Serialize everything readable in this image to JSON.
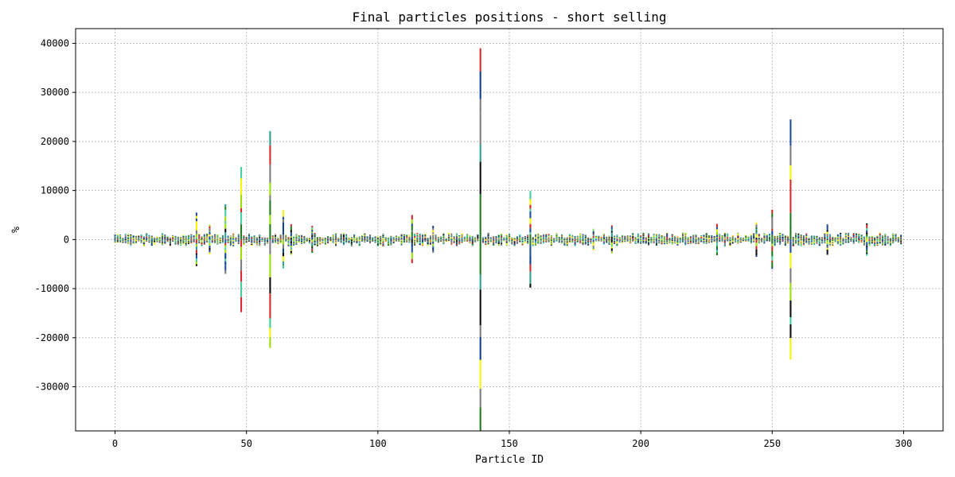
{
  "chart_data": {
    "type": "bar",
    "title": "Final particles positions - short selling",
    "xlabel": "Particle ID",
    "ylabel": "%",
    "xlim": [
      -15,
      315
    ],
    "ylim": [
      -39000,
      43000
    ],
    "x_ticks": [
      0,
      50,
      100,
      150,
      200,
      250,
      300
    ],
    "y_ticks": [
      -30000,
      -20000,
      -10000,
      0,
      10000,
      20000,
      30000,
      40000
    ],
    "grid": true,
    "legend": "none",
    "stacked": true,
    "segment_colors": [
      "#d62728",
      "#1f4e9c",
      "#2a9d8f",
      "#3ecf9a",
      "#f5f500",
      "#0a0a0a",
      "#1a7a1a",
      "#7a7a7a",
      "#0b3d91",
      "#9ade00"
    ],
    "num_particles": 300,
    "baseline_range": [
      -1400,
      1400
    ],
    "particles": [
      {
        "id": 31,
        "up": 5500,
        "down": -5400
      },
      {
        "id": 36,
        "up": 3000,
        "down": -3000
      },
      {
        "id": 42,
        "up": 7200,
        "down": -7000
      },
      {
        "id": 48,
        "up": 14800,
        "down": -14800
      },
      {
        "id": 59,
        "up": 22100,
        "down": -22100
      },
      {
        "id": 64,
        "up": 6000,
        "down": -5900
      },
      {
        "id": 67,
        "up": 3100,
        "down": -3100
      },
      {
        "id": 75,
        "up": 2800,
        "down": -2700
      },
      {
        "id": 113,
        "up": 5000,
        "down": -4800
      },
      {
        "id": 121,
        "up": 2800,
        "down": -2700
      },
      {
        "id": 139,
        "up": 39000,
        "down": -39000
      },
      {
        "id": 158,
        "up": 9900,
        "down": -9800
      },
      {
        "id": 182,
        "up": 2200,
        "down": -2200
      },
      {
        "id": 189,
        "up": 2900,
        "down": -2800
      },
      {
        "id": 229,
        "up": 3200,
        "down": -3200
      },
      {
        "id": 244,
        "up": 3500,
        "down": -3500
      },
      {
        "id": 250,
        "up": 6100,
        "down": -6000
      },
      {
        "id": 257,
        "up": 24500,
        "down": -24500
      },
      {
        "id": 271,
        "up": 3100,
        "down": -3100
      },
      {
        "id": 286,
        "up": 3300,
        "down": -3300
      }
    ]
  }
}
